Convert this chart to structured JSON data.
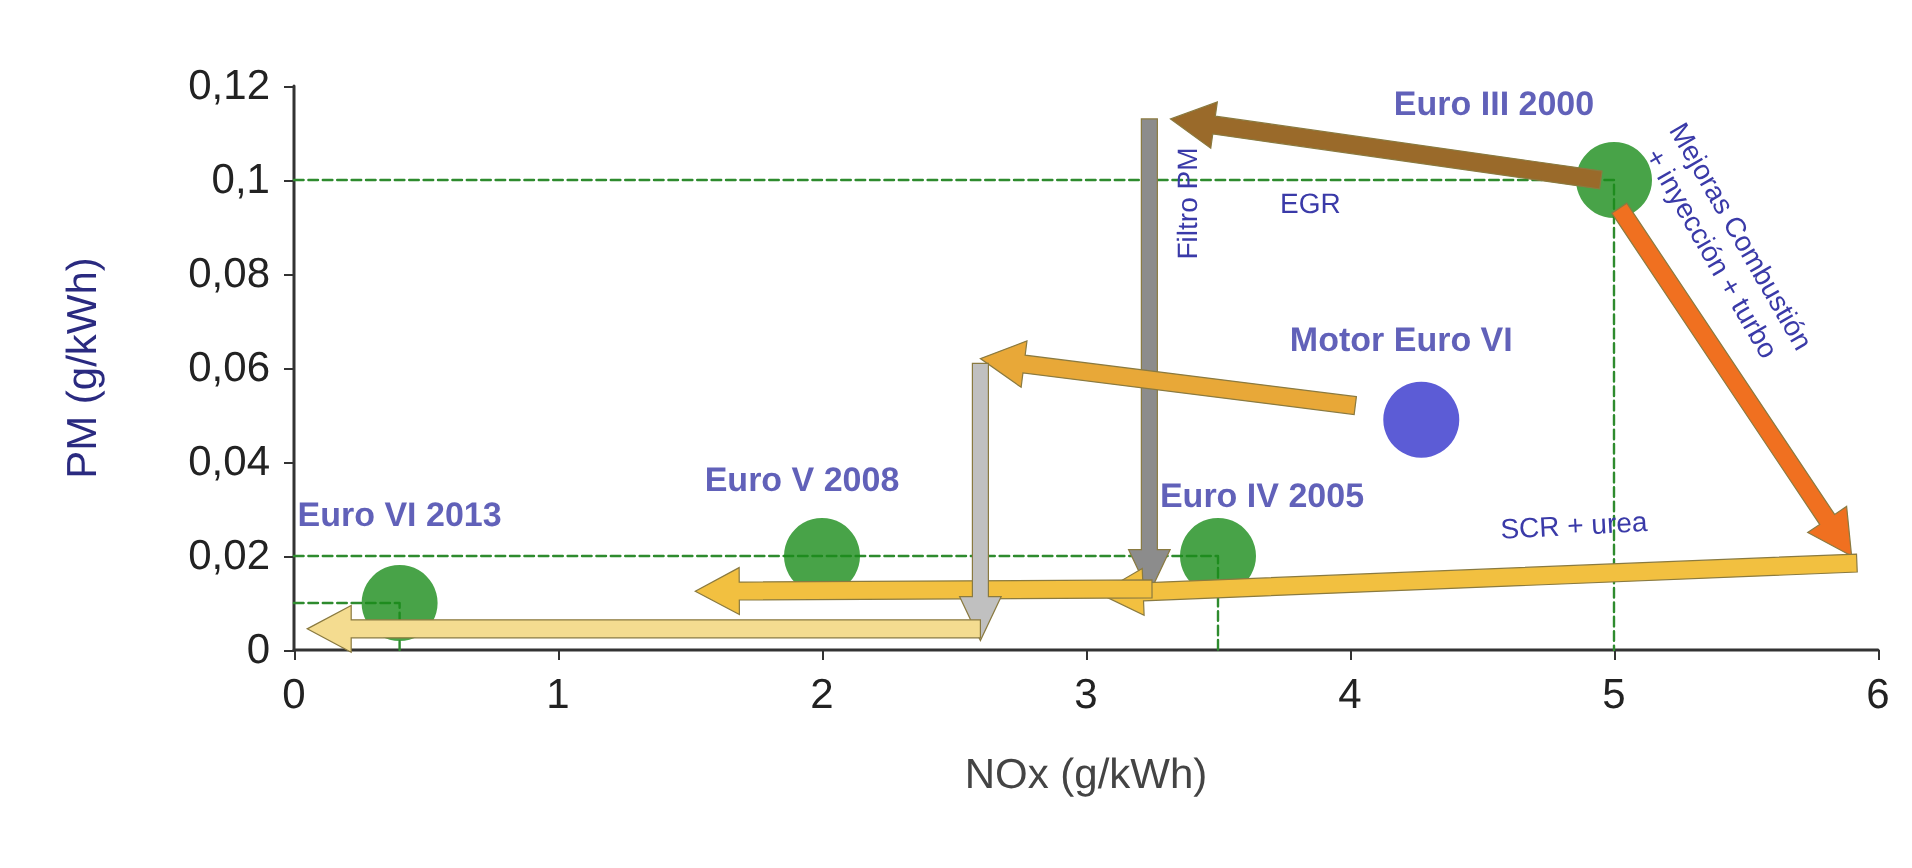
{
  "chart_data": {
    "type": "scatter",
    "xlabel": "NOx (g/kWh)",
    "ylabel": "PM (g/kWh)",
    "xlim": [
      0,
      6
    ],
    "xticks": [
      0,
      1,
      2,
      3,
      4,
      5,
      6
    ],
    "ylim": [
      0,
      0.12
    ],
    "yticks": [
      0,
      {
        "value": 0.02,
        "label": "0,02"
      },
      {
        "value": 0.04,
        "label": "0,04"
      },
      {
        "value": 0.06,
        "label": "0,06"
      },
      {
        "value": 0.08,
        "label": "0,08"
      },
      {
        "value": 0.1,
        "label": "0,1"
      },
      {
        "value": 0.12,
        "label": "0,12"
      }
    ],
    "grid": false,
    "legend": false,
    "marker": "circle",
    "series": [
      {
        "type": "line",
        "line_style": "dashed",
        "marker": "none",
        "color": "#2e8b2e",
        "x": [
          0,
          5,
          5
        ],
        "values": [
          0.1,
          0.1,
          0
        ]
      },
      {
        "type": "line",
        "line_style": "dashed",
        "marker": "none",
        "color": "#2e8b2e",
        "x": [
          0,
          3.5,
          3.5
        ],
        "values": [
          0.02,
          0.02,
          0
        ]
      },
      {
        "type": "line",
        "line_style": "dashed",
        "marker": "none",
        "color": "#2e8b2e",
        "x": [
          0,
          0.4,
          0.4
        ],
        "values": [
          0.01,
          0.01,
          0
        ]
      },
      {
        "name": "Euro III 2000",
        "color": "#1a8c1a",
        "x": [
          5
        ],
        "values": [
          0.1
        ]
      },
      {
        "name": "Motor Euro VI",
        "color": "#3333cc",
        "x": [
          4.27
        ],
        "values": [
          0.049
        ]
      },
      {
        "name": "Euro IV 2005",
        "color": "#1a8c1a",
        "x": [
          3.5
        ],
        "values": [
          0.02
        ]
      },
      {
        "name": "Euro V 2008",
        "color": "#1a8c1a",
        "x": [
          2
        ],
        "values": [
          0.02
        ]
      },
      {
        "name": "Euro VI 2013",
        "color": "#1a8c1a",
        "x": [
          0.4
        ],
        "values": [
          0.01
        ]
      }
    ],
    "annotations": [
      "EGR",
      "Filtro PM",
      "Mejoras Combustión\n+ inyección + turbo",
      "SCR + urea"
    ]
  }
}
